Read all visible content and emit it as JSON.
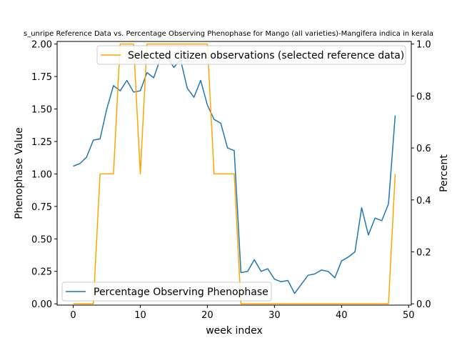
{
  "chart_data": {
    "type": "line",
    "title": "s_unripe Reference Data vs. Percentage Observing Phenophase for Mango (all varieties)-Mangifera indica in kerala",
    "xlabel": "week index",
    "ylabel_left": "Phenophase Value",
    "ylabel_right": "Percent",
    "xlim": [
      -2.4,
      50.4
    ],
    "ylim_left": [
      -0.01,
      2.02
    ],
    "ylim_right": [
      -0.005,
      1.01
    ],
    "x_ticks": [
      "0",
      "10",
      "20",
      "30",
      "40",
      "50"
    ],
    "y_left_ticks": [
      "0.00",
      "0.25",
      "0.50",
      "0.75",
      "1.00",
      "1.25",
      "1.50",
      "1.75",
      "2.00"
    ],
    "y_right_ticks": [
      "0.0",
      "0.2",
      "0.4",
      "0.6",
      "0.8",
      "1.0"
    ],
    "series": [
      {
        "name": "Percentage Observing Phenophase",
        "axis": "left",
        "color": "#1f77b4",
        "x": [
          0,
          1,
          2,
          3,
          4,
          5,
          6,
          7,
          8,
          9,
          10,
          11,
          12,
          13,
          14,
          15,
          16,
          17,
          18,
          19,
          20,
          21,
          22,
          23,
          24,
          25,
          26,
          27,
          28,
          29,
          30,
          31,
          32,
          33,
          34,
          35,
          36,
          37,
          38,
          39,
          40,
          41,
          42,
          43,
          44,
          45,
          46,
          47,
          48
        ],
        "values": [
          1.06,
          1.08,
          1.13,
          1.26,
          1.27,
          1.5,
          1.68,
          1.64,
          1.72,
          1.63,
          1.64,
          1.78,
          1.74,
          1.89,
          1.9,
          1.82,
          1.88,
          1.66,
          1.59,
          1.72,
          1.53,
          1.42,
          1.39,
          1.2,
          1.18,
          0.24,
          0.25,
          0.34,
          0.25,
          0.27,
          0.19,
          0.17,
          0.18,
          0.08,
          0.15,
          0.22,
          0.23,
          0.26,
          0.25,
          0.2,
          0.33,
          0.36,
          0.4,
          0.74,
          0.53,
          0.66,
          0.64,
          0.77,
          1.45
        ]
      },
      {
        "name": "Selected citizen observations (selected reference data)",
        "axis": "right",
        "color": "#ffa500",
        "x": [
          0,
          1,
          2,
          3,
          4,
          5,
          6,
          7,
          8,
          9,
          10,
          11,
          12,
          13,
          14,
          15,
          16,
          17,
          18,
          19,
          20,
          21,
          22,
          23,
          24,
          25,
          26,
          27,
          28,
          29,
          30,
          31,
          32,
          33,
          34,
          35,
          36,
          37,
          38,
          39,
          40,
          41,
          42,
          43,
          44,
          45,
          46,
          47,
          48
        ],
        "values": [
          0,
          0,
          0,
          0,
          0.5,
          0.5,
          0.5,
          1,
          1,
          1,
          0.5,
          1,
          1,
          1,
          1,
          1,
          1,
          1,
          1,
          1,
          1,
          0.5,
          0.5,
          0.5,
          0.5,
          0,
          0,
          0,
          0,
          0,
          0,
          0,
          0,
          0,
          0,
          0,
          0,
          0,
          0,
          0,
          0,
          0,
          0,
          0,
          0,
          0,
          0,
          0,
          0.5
        ]
      }
    ],
    "grid": false,
    "legend": [
      "upper-right",
      "lower-left"
    ]
  }
}
